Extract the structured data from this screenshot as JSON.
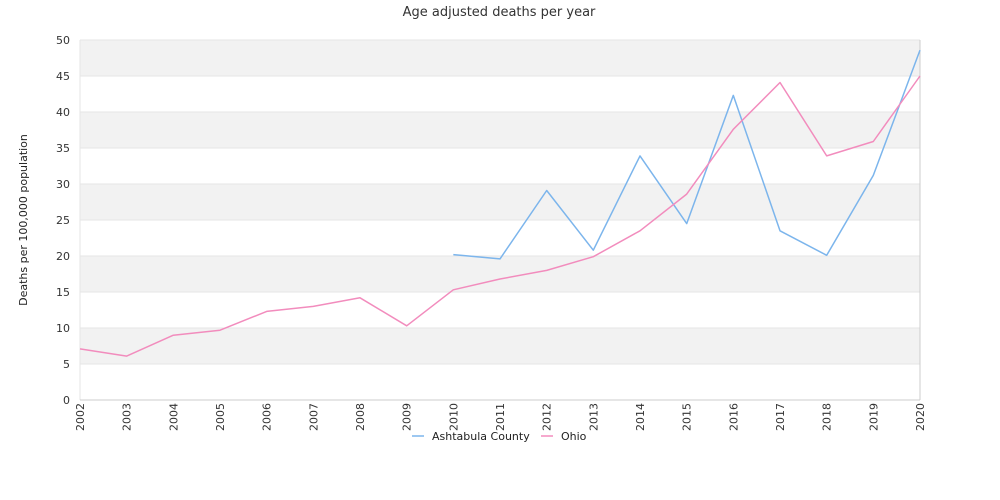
{
  "chart_data": {
    "type": "line",
    "title": "Age adjusted deaths per year",
    "xlabel": "",
    "ylabel": "Deaths per 100,000 population",
    "ylim": [
      0,
      50
    ],
    "yticks": [
      0,
      5,
      10,
      15,
      20,
      25,
      30,
      35,
      40,
      45,
      50
    ],
    "x": [
      "2002",
      "2003",
      "2004",
      "2005",
      "2006",
      "2007",
      "2008",
      "2009",
      "2010",
      "2011",
      "2012",
      "2013",
      "2014",
      "2015",
      "2016",
      "2017",
      "2018",
      "2019",
      "2020"
    ],
    "legend_position": "bottom",
    "grid": "alternating horizontal bands",
    "colors": {
      "band": "#f2f2f2",
      "axis": "#cccccc"
    },
    "series": [
      {
        "name": "Ashtabula County",
        "color": "#7cb5ec",
        "values": [
          null,
          null,
          null,
          null,
          null,
          null,
          null,
          null,
          20.2,
          19.6,
          29.1,
          20.8,
          33.9,
          24.5,
          42.3,
          23.5,
          20.1,
          31.2,
          48.6
        ]
      },
      {
        "name": "Ohio",
        "color": "#f28cbd",
        "values": [
          7.1,
          6.1,
          9.0,
          9.7,
          12.3,
          13.0,
          14.2,
          10.3,
          15.3,
          16.8,
          18.0,
          19.9,
          23.5,
          28.6,
          37.6,
          44.1,
          33.9,
          35.9,
          45.0
        ]
      }
    ]
  }
}
